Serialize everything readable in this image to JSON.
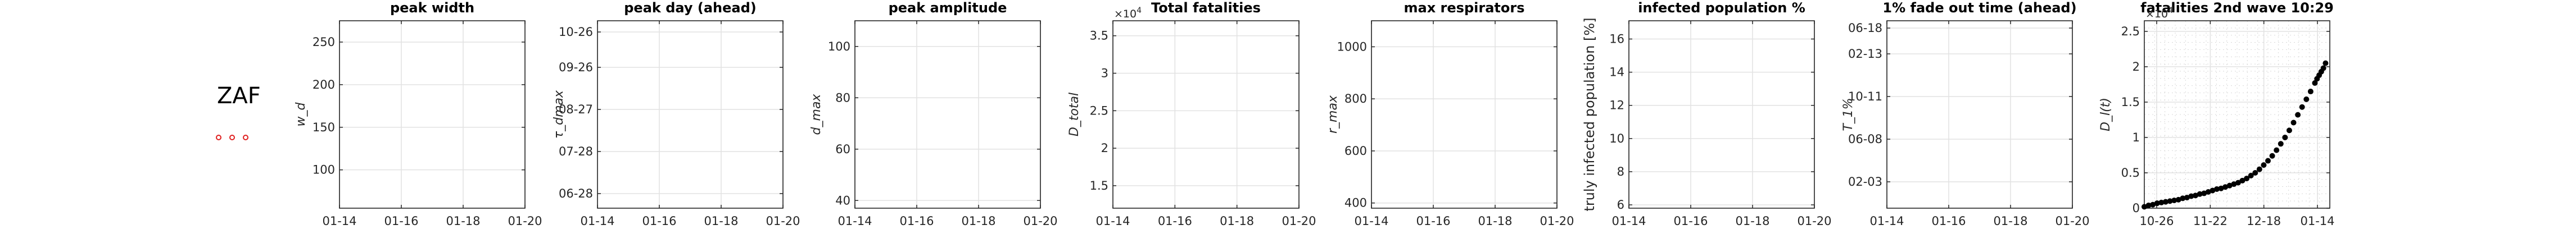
{
  "country_label": "ZAF",
  "legend_markers": [
    {
      "color": "#e02020"
    },
    {
      "color": "#e02020"
    },
    {
      "color": "#e02020"
    }
  ],
  "chart_data": [
    {
      "type": "line",
      "title": "peak width",
      "ylabel": "w_d",
      "xticks": [
        "01-14",
        "01-16",
        "01-18",
        "01-20"
      ],
      "yticks": [
        "100",
        "150",
        "200",
        "250"
      ],
      "ylim": [
        55,
        275
      ],
      "grid": true,
      "series": []
    },
    {
      "type": "line",
      "title": "peak day (ahead)",
      "ylabel": "τ_dmax",
      "xticks": [
        "01-14",
        "01-16",
        "01-18",
        "01-20"
      ],
      "yticks": [
        "06-28",
        "07-28",
        "08-27",
        "09-26",
        "10-26"
      ],
      "grid": true,
      "series": []
    },
    {
      "type": "line",
      "title": "peak amplitude",
      "ylabel": "d_max",
      "xticks": [
        "01-14",
        "01-16",
        "01-18",
        "01-20"
      ],
      "yticks": [
        "40",
        "60",
        "80",
        "100"
      ],
      "ylim": [
        37,
        110
      ],
      "grid": true,
      "series": []
    },
    {
      "type": "line",
      "title": "Total fatalities",
      "ylabel": "D_total",
      "exponent_label": "×10",
      "exponent_power": "4",
      "xticks": [
        "01-14",
        "01-16",
        "01-18",
        "01-20"
      ],
      "yticks": [
        "1.5",
        "2",
        "2.5",
        "3",
        "3.5"
      ],
      "ylim": [
        1.2,
        3.7
      ],
      "grid": true,
      "series": []
    },
    {
      "type": "line",
      "title": "max respirators",
      "ylabel": "r_max",
      "xticks": [
        "01-14",
        "01-16",
        "01-18",
        "01-20"
      ],
      "yticks": [
        "400",
        "600",
        "800",
        "1000"
      ],
      "ylim": [
        380,
        1100
      ],
      "grid": true,
      "series": []
    },
    {
      "type": "line",
      "title": "infected population %",
      "ylabel": "truly infected population [%]",
      "xticks": [
        "01-14",
        "01-16",
        "01-18",
        "01-20"
      ],
      "yticks": [
        "6",
        "8",
        "10",
        "12",
        "14",
        "16"
      ],
      "ylim": [
        5.8,
        17.1
      ],
      "grid": true,
      "series": []
    },
    {
      "type": "line",
      "title": "1% fade out time (ahead)",
      "ylabel": "T_1%",
      "xticks": [
        "01-14",
        "01-16",
        "01-18",
        "01-20"
      ],
      "yticks": [
        "02-03",
        "06-08",
        "10-11",
        "02-13",
        "06-18"
      ],
      "grid": true,
      "series": []
    },
    {
      "type": "scatter",
      "title": "fatalities 2nd wave 10:29",
      "ylabel": "D_l(t)",
      "exponent_label": "×10",
      "exponent_power": "4",
      "xticks": [
        "10-26",
        "11-22",
        "12-18",
        "01-14"
      ],
      "yticks": [
        "0",
        "0.5",
        "1",
        "1.5",
        "2",
        "2.5"
      ],
      "xlim": [
        0,
        87
      ],
      "ylim": [
        0,
        2.65
      ],
      "grid": true,
      "series": [
        {
          "color": "#000000",
          "x": [
            0,
            2,
            4,
            6,
            8,
            10,
            12,
            14,
            16,
            18,
            20,
            22,
            24,
            26,
            28,
            30,
            32,
            34,
            36,
            38,
            40,
            42,
            44,
            46,
            48,
            50,
            52,
            54,
            56,
            58,
            60,
            62,
            64,
            66,
            68,
            70,
            72,
            74,
            76,
            78,
            80,
            81,
            82,
            83,
            84,
            85
          ],
          "y": [
            0.02,
            0.04,
            0.05,
            0.07,
            0.08,
            0.09,
            0.1,
            0.11,
            0.12,
            0.14,
            0.15,
            0.17,
            0.18,
            0.2,
            0.21,
            0.23,
            0.25,
            0.27,
            0.28,
            0.3,
            0.32,
            0.34,
            0.36,
            0.39,
            0.42,
            0.46,
            0.5,
            0.55,
            0.61,
            0.67,
            0.74,
            0.82,
            0.91,
            1.0,
            1.1,
            1.21,
            1.32,
            1.43,
            1.54,
            1.65,
            1.77,
            1.83,
            1.88,
            1.93,
            1.98,
            2.05
          ]
        }
      ]
    }
  ]
}
